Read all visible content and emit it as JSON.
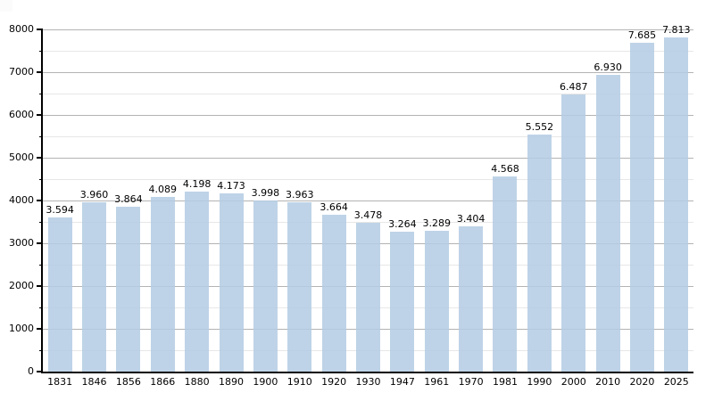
{
  "chart_data": {
    "type": "bar",
    "title": "",
    "xlabel": "",
    "ylabel": "",
    "categories": [
      "1831",
      "1846",
      "1856",
      "1866",
      "1880",
      "1890",
      "1900",
      "1910",
      "1920",
      "1930",
      "1947",
      "1961",
      "1970",
      "1981",
      "1990",
      "2000",
      "2010",
      "2020",
      "2025"
    ],
    "values": [
      3594,
      3960,
      3864,
      4089,
      4198,
      4173,
      3998,
      3963,
      3664,
      3478,
      3264,
      3289,
      3404,
      4568,
      5552,
      6487,
      6930,
      7685,
      7813
    ],
    "value_labels": [
      "3.594",
      "3.960",
      "3.864",
      "4.089",
      "4.198",
      "4.173",
      "3.998",
      "3.963",
      "3.664",
      "3.478",
      "3.264",
      "3.289",
      "3.404",
      "4.568",
      "5.552",
      "6.487",
      "6.930",
      "7.685",
      "7.813"
    ],
    "ylim": [
      0,
      8000
    ],
    "y_major_step": 1000,
    "y_minor_step": 500,
    "y_tick_labels": [
      "0",
      "1000",
      "2000",
      "3000",
      "4000",
      "5000",
      "6000",
      "7000",
      "8000"
    ],
    "grid": "horizontal major and minor lines, on",
    "legend": "none",
    "colors": {
      "bar_fill": "#b4cce3",
      "grid_major": "#b3b3b3",
      "grid_minor": "#e7e7e7",
      "axis": "#000000",
      "text": "#000000",
      "background": "#ffffff"
    }
  }
}
